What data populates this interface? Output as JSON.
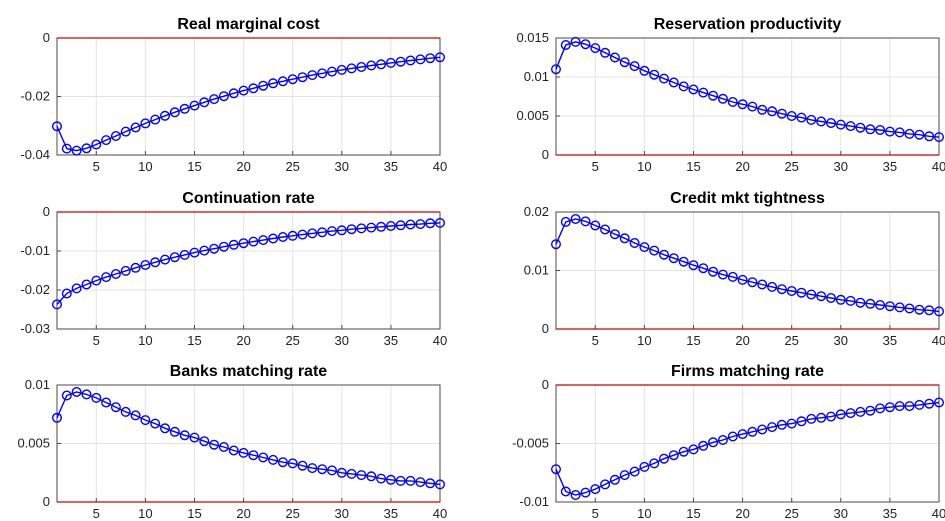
{
  "colors": {
    "series": "#0000ff",
    "zero_line": "#cc0000",
    "grid": "#e3e3e3",
    "axes": "#4a4a4a"
  },
  "chart_data": [
    {
      "type": "line",
      "title": "Real marginal cost",
      "x_tick_labels": [
        "5",
        "10",
        "15",
        "20",
        "25",
        "30",
        "35",
        "40"
      ],
      "y_tick_labels": [
        "0",
        "-0.02",
        "-0.04"
      ],
      "xlim": [
        1,
        40
      ],
      "ylim": [
        -0.04,
        0
      ],
      "grid": true,
      "reference_line": 0,
      "x": [
        1,
        2,
        3,
        4,
        5,
        6,
        7,
        8,
        9,
        10,
        11,
        12,
        13,
        14,
        15,
        16,
        17,
        18,
        19,
        20,
        21,
        22,
        23,
        24,
        25,
        26,
        27,
        28,
        29,
        30,
        31,
        32,
        33,
        34,
        35,
        36,
        37,
        38,
        39,
        40
      ],
      "y": [
        -0.0302,
        -0.0378,
        -0.0385,
        -0.0377,
        -0.0364,
        -0.0349,
        -0.0335,
        -0.032,
        -0.0306,
        -0.0292,
        -0.0279,
        -0.0266,
        -0.0254,
        -0.0242,
        -0.0231,
        -0.022,
        -0.0209,
        -0.0199,
        -0.0189,
        -0.018,
        -0.0172,
        -0.0163,
        -0.0155,
        -0.0148,
        -0.0141,
        -0.0134,
        -0.0127,
        -0.0121,
        -0.0115,
        -0.0109,
        -0.0104,
        -0.0099,
        -0.0094,
        -0.009,
        -0.0085,
        -0.0081,
        -0.0077,
        -0.0073,
        -0.0069,
        -0.0066
      ]
    },
    {
      "type": "line",
      "title": "Reservation productivity",
      "x_tick_labels": [
        "5",
        "10",
        "15",
        "20",
        "25",
        "30",
        "35",
        "40"
      ],
      "y_tick_labels": [
        "0.015",
        "0.01",
        "0.005",
        "0"
      ],
      "xlim": [
        1,
        40
      ],
      "ylim": [
        0,
        0.015
      ],
      "grid": true,
      "reference_line": 0,
      "x": [
        1,
        2,
        3,
        4,
        5,
        6,
        7,
        8,
        9,
        10,
        11,
        12,
        13,
        14,
        15,
        16,
        17,
        18,
        19,
        20,
        21,
        22,
        23,
        24,
        25,
        26,
        27,
        28,
        29,
        30,
        31,
        32,
        33,
        34,
        35,
        36,
        37,
        38,
        39,
        40
      ],
      "y": [
        0.011,
        0.0141,
        0.0145,
        0.0142,
        0.0137,
        0.0131,
        0.0125,
        0.0119,
        0.0114,
        0.0108,
        0.0103,
        0.0098,
        0.0093,
        0.0088,
        0.0084,
        0.008,
        0.0076,
        0.0072,
        0.0068,
        0.0065,
        0.0062,
        0.0058,
        0.0056,
        0.0053,
        0.005,
        0.0048,
        0.0045,
        0.0043,
        0.0041,
        0.0039,
        0.0037,
        0.0035,
        0.0033,
        0.0032,
        0.003,
        0.0029,
        0.0027,
        0.0026,
        0.0024,
        0.0023
      ]
    },
    {
      "type": "line",
      "title": "Continuation rate",
      "x_tick_labels": [
        "5",
        "10",
        "15",
        "20",
        "25",
        "30",
        "35",
        "40"
      ],
      "y_tick_labels": [
        "0",
        "-0.01",
        "-0.02",
        "-0.03"
      ],
      "xlim": [
        1,
        40
      ],
      "ylim": [
        -0.03,
        0
      ],
      "grid": true,
      "reference_line": 0,
      "x": [
        1,
        2,
        3,
        4,
        5,
        6,
        7,
        8,
        9,
        10,
        11,
        12,
        13,
        14,
        15,
        16,
        17,
        18,
        19,
        20,
        21,
        22,
        23,
        24,
        25,
        26,
        27,
        28,
        29,
        30,
        31,
        32,
        33,
        34,
        35,
        36,
        37,
        38,
        39,
        40
      ],
      "y": [
        -0.0237,
        -0.0209,
        -0.0196,
        -0.0186,
        -0.0176,
        -0.0167,
        -0.0159,
        -0.0151,
        -0.0143,
        -0.0136,
        -0.0129,
        -0.0122,
        -0.0116,
        -0.011,
        -0.0104,
        -0.0099,
        -0.0094,
        -0.0089,
        -0.0084,
        -0.008,
        -0.0076,
        -0.0072,
        -0.0068,
        -0.0064,
        -0.0061,
        -0.0058,
        -0.0055,
        -0.0052,
        -0.0049,
        -0.0047,
        -0.0044,
        -0.0042,
        -0.004,
        -0.0038,
        -0.0036,
        -0.0034,
        -0.0032,
        -0.0031,
        -0.0029,
        -0.0028
      ]
    },
    {
      "type": "line",
      "title": "Credit mkt tightness",
      "x_tick_labels": [
        "5",
        "10",
        "15",
        "20",
        "25",
        "30",
        "35",
        "40"
      ],
      "y_tick_labels": [
        "0.02",
        "0.01",
        "0"
      ],
      "xlim": [
        1,
        40
      ],
      "ylim": [
        0,
        0.02
      ],
      "grid": true,
      "reference_line": 0,
      "x": [
        1,
        2,
        3,
        4,
        5,
        6,
        7,
        8,
        9,
        10,
        11,
        12,
        13,
        14,
        15,
        16,
        17,
        18,
        19,
        20,
        21,
        22,
        23,
        24,
        25,
        26,
        27,
        28,
        29,
        30,
        31,
        32,
        33,
        34,
        35,
        36,
        37,
        38,
        39,
        40
      ],
      "y": [
        0.0145,
        0.0183,
        0.0188,
        0.0184,
        0.0177,
        0.017,
        0.0162,
        0.0155,
        0.0147,
        0.014,
        0.0134,
        0.0127,
        0.0121,
        0.0115,
        0.0109,
        0.0104,
        0.0098,
        0.0093,
        0.0089,
        0.0084,
        0.008,
        0.0076,
        0.0072,
        0.0068,
        0.0065,
        0.0062,
        0.0059,
        0.0056,
        0.0053,
        0.005,
        0.0048,
        0.0045,
        0.0043,
        0.0041,
        0.0039,
        0.0037,
        0.0035,
        0.0033,
        0.0032,
        0.003
      ]
    },
    {
      "type": "line",
      "title": "Banks matching rate",
      "x_tick_labels": [
        "5",
        "10",
        "15",
        "20",
        "25",
        "30",
        "35",
        "40"
      ],
      "y_tick_labels": [
        "0.01",
        "0.005",
        "0"
      ],
      "xlim": [
        1,
        40
      ],
      "ylim": [
        0,
        0.01
      ],
      "grid": true,
      "reference_line": 0,
      "x": [
        1,
        2,
        3,
        4,
        5,
        6,
        7,
        8,
        9,
        10,
        11,
        12,
        13,
        14,
        15,
        16,
        17,
        18,
        19,
        20,
        21,
        22,
        23,
        24,
        25,
        26,
        27,
        28,
        29,
        30,
        31,
        32,
        33,
        34,
        35,
        36,
        37,
        38,
        39,
        40
      ],
      "y": [
        0.0072,
        0.0091,
        0.0094,
        0.0092,
        0.0089,
        0.0085,
        0.0081,
        0.0077,
        0.0074,
        0.007,
        0.0067,
        0.0063,
        0.006,
        0.0057,
        0.0055,
        0.0052,
        0.0049,
        0.0047,
        0.0044,
        0.0042,
        0.004,
        0.0038,
        0.0036,
        0.0034,
        0.0033,
        0.0031,
        0.0029,
        0.0028,
        0.0027,
        0.0025,
        0.0024,
        0.0023,
        0.0022,
        0.002,
        0.0019,
        0.0018,
        0.0018,
        0.0017,
        0.0016,
        0.0015
      ]
    },
    {
      "type": "line",
      "title": "Firms matching rate",
      "x_tick_labels": [
        "5",
        "10",
        "15",
        "20",
        "25",
        "30",
        "35",
        "40"
      ],
      "y_tick_labels": [
        "0",
        "-0.005",
        "-0.01"
      ],
      "xlim": [
        1,
        40
      ],
      "ylim": [
        -0.01,
        0
      ],
      "grid": true,
      "reference_line": 0,
      "x": [
        1,
        2,
        3,
        4,
        5,
        6,
        7,
        8,
        9,
        10,
        11,
        12,
        13,
        14,
        15,
        16,
        17,
        18,
        19,
        20,
        21,
        22,
        23,
        24,
        25,
        26,
        27,
        28,
        29,
        30,
        31,
        32,
        33,
        34,
        35,
        36,
        37,
        38,
        39,
        40
      ],
      "y": [
        -0.0072,
        -0.0091,
        -0.0094,
        -0.0092,
        -0.0089,
        -0.0085,
        -0.0081,
        -0.0077,
        -0.0074,
        -0.007,
        -0.0067,
        -0.0063,
        -0.006,
        -0.0057,
        -0.0055,
        -0.0052,
        -0.0049,
        -0.0047,
        -0.0044,
        -0.0042,
        -0.004,
        -0.0038,
        -0.0036,
        -0.0034,
        -0.0033,
        -0.0031,
        -0.0029,
        -0.0028,
        -0.0027,
        -0.0025,
        -0.0024,
        -0.0023,
        -0.0022,
        -0.002,
        -0.0019,
        -0.0018,
        -0.0018,
        -0.0017,
        -0.0016,
        -0.0015
      ]
    }
  ]
}
